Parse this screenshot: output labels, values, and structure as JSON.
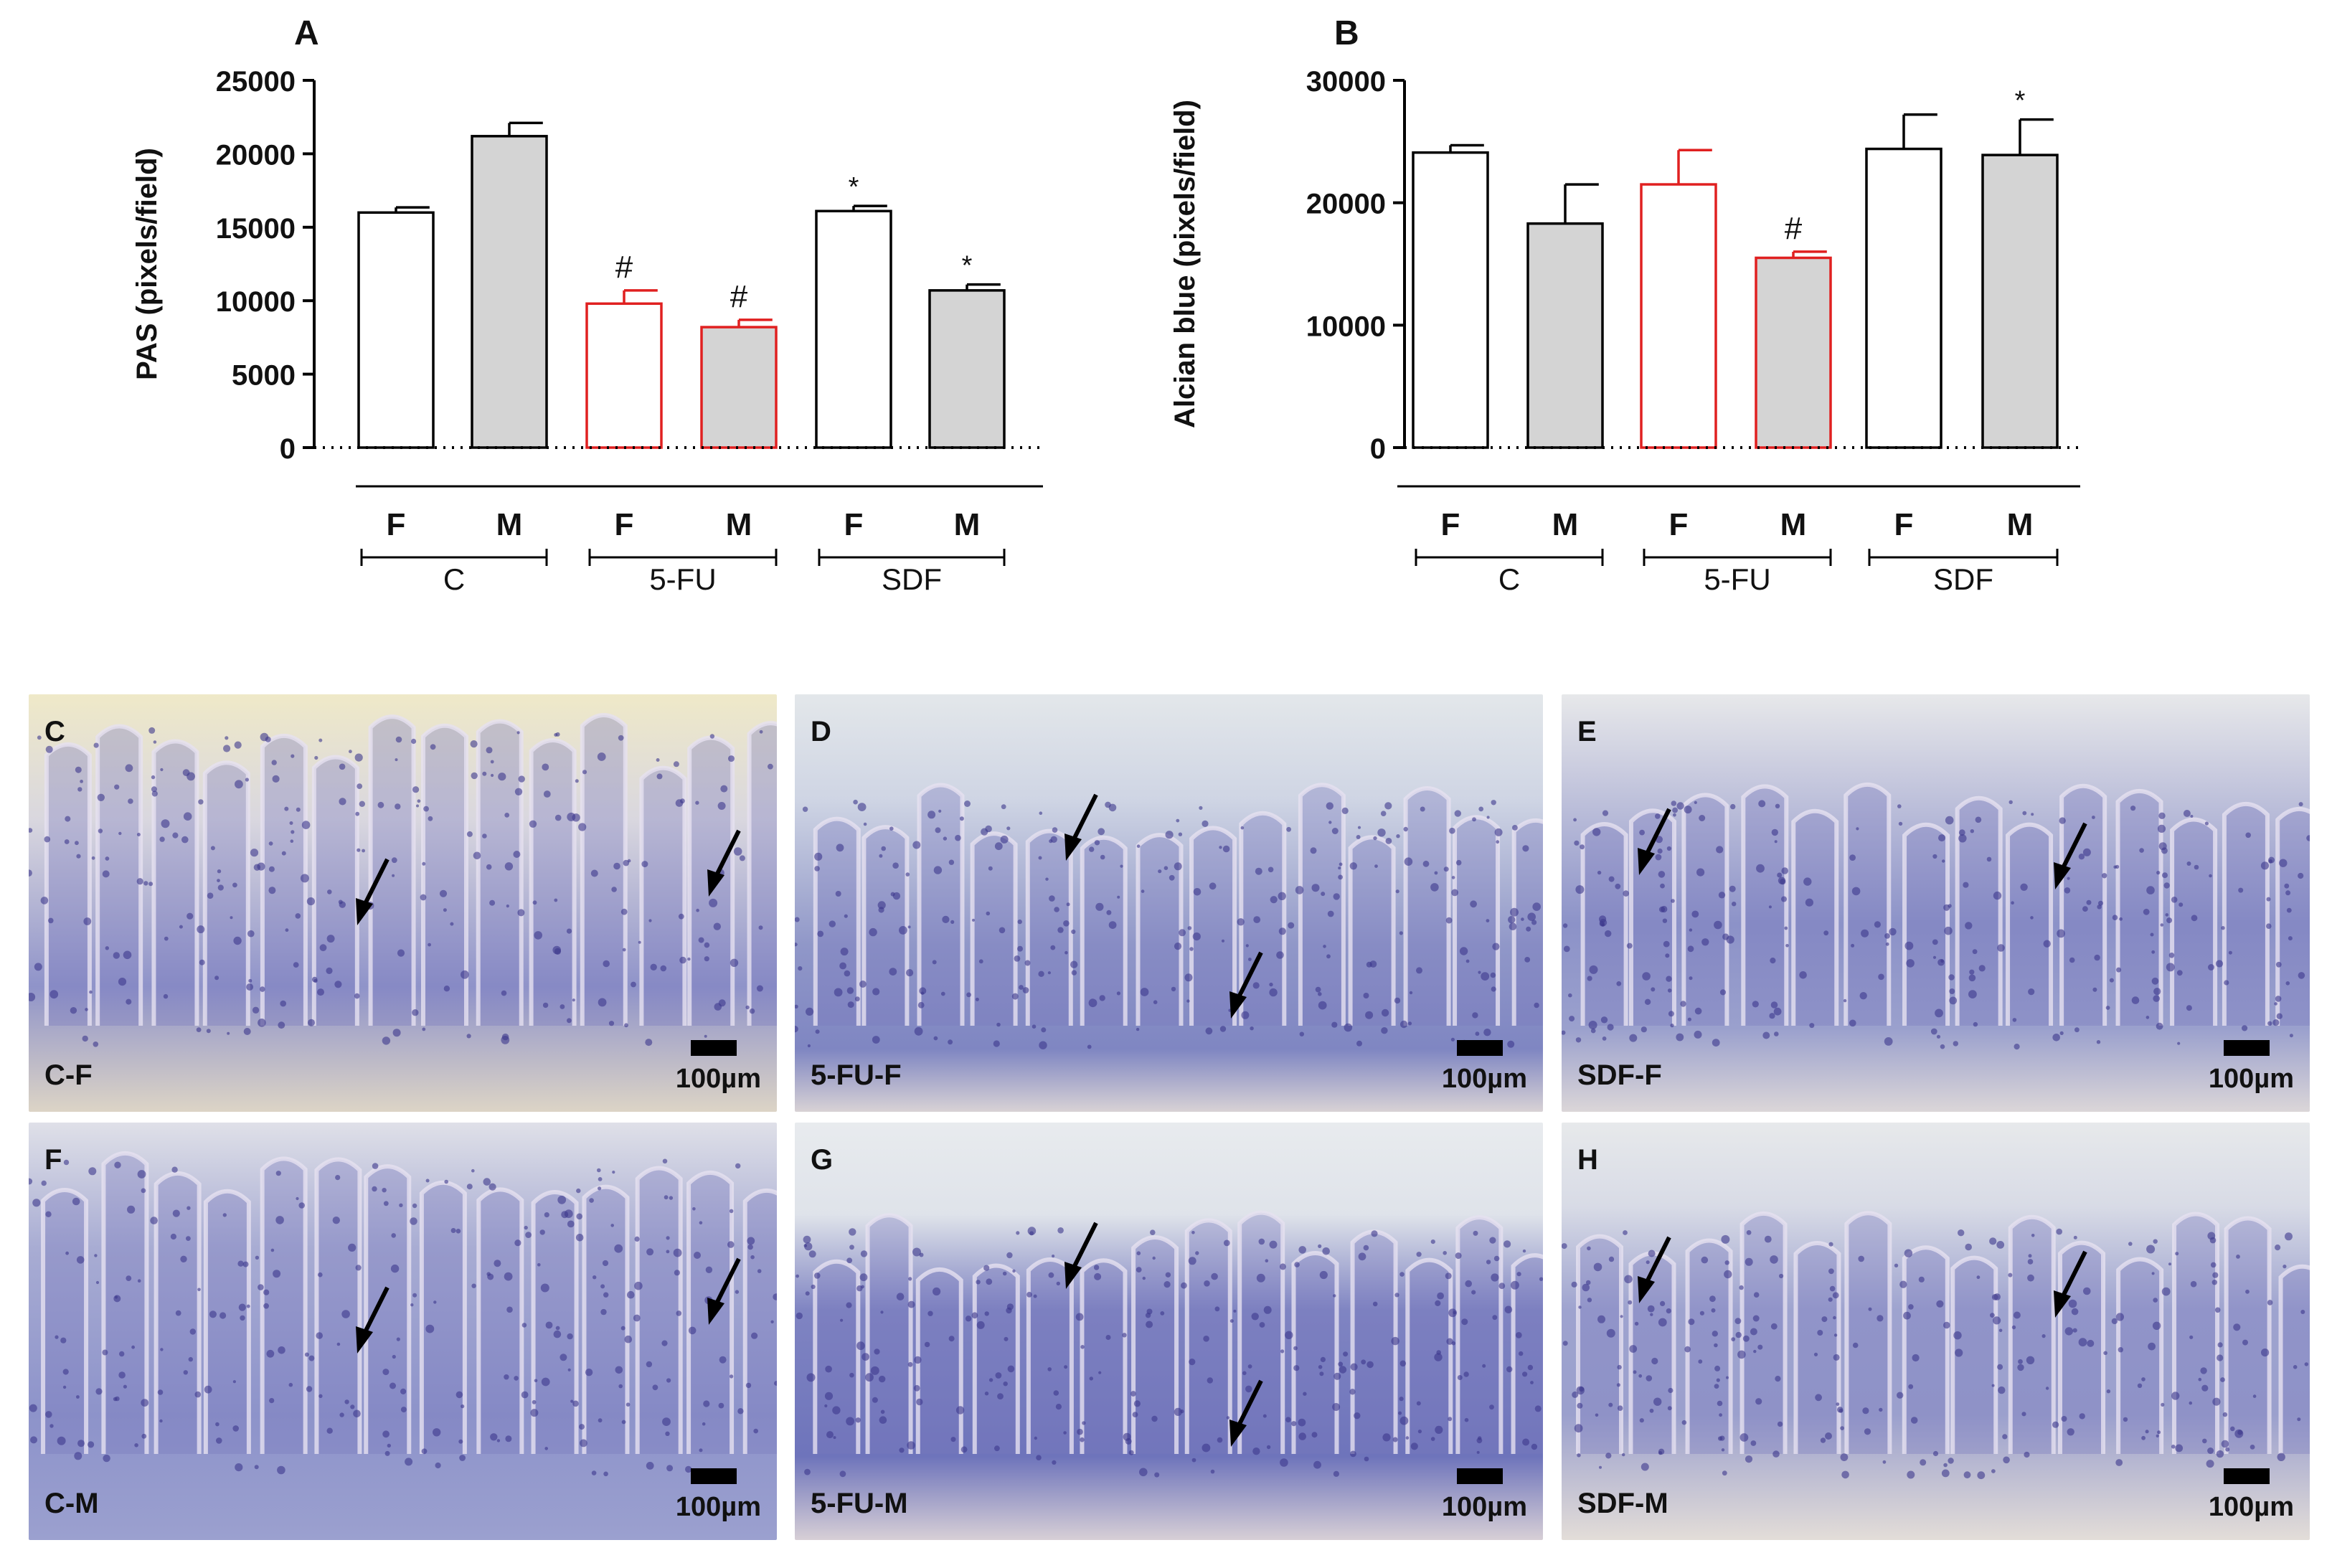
{
  "chart_data": [
    {
      "panel": "A",
      "type": "bar",
      "ylabel": "PAS (pixels/field)",
      "ylim": [
        0,
        25000
      ],
      "yticks": [
        0,
        5000,
        10000,
        15000,
        20000,
        25000
      ],
      "categories": [
        "F",
        "M",
        "F",
        "M",
        "F",
        "M"
      ],
      "groups": [
        {
          "name": "C",
          "span": [
            0,
            1
          ]
        },
        {
          "name": "5-FU",
          "span": [
            2,
            3
          ]
        },
        {
          "name": "SDF",
          "span": [
            4,
            5
          ]
        }
      ],
      "values": [
        16000,
        21200,
        9800,
        8200,
        16100,
        10700
      ],
      "errors": [
        350,
        900,
        900,
        500,
        350,
        400
      ],
      "annotations": [
        "",
        "",
        "#",
        "#",
        "*",
        "*"
      ],
      "fills": [
        "#ffffff",
        "#d4d4d4",
        "#ffffff",
        "#d4d4d4",
        "#ffffff",
        "#d4d4d4"
      ],
      "strokes": [
        "#000000",
        "#000000",
        "#e02020",
        "#e02020",
        "#000000",
        "#000000"
      ]
    },
    {
      "panel": "B",
      "type": "bar",
      "ylabel": "Alcian blue (pixels/field)",
      "ylim": [
        0,
        30000
      ],
      "yticks": [
        0,
        10000,
        20000,
        30000
      ],
      "categories": [
        "F",
        "M",
        "F",
        "M",
        "F",
        "M"
      ],
      "groups": [
        {
          "name": "C",
          "span": [
            0,
            1
          ]
        },
        {
          "name": "5-FU",
          "span": [
            2,
            3
          ]
        },
        {
          "name": "SDF",
          "span": [
            4,
            5
          ]
        }
      ],
      "values": [
        24100,
        18300,
        21500,
        15500,
        24400,
        23900
      ],
      "errors": [
        600,
        3200,
        2800,
        500,
        2800,
        2900
      ],
      "annotations": [
        "",
        "",
        "",
        "#",
        "",
        "*"
      ],
      "fills": [
        "#ffffff",
        "#d4d4d4",
        "#ffffff",
        "#d4d4d4",
        "#ffffff",
        "#d4d4d4"
      ],
      "strokes": [
        "#000000",
        "#000000",
        "#e02020",
        "#e02020",
        "#000000",
        "#000000"
      ]
    }
  ],
  "micrographs": [
    {
      "letter": "C",
      "label": "C-F",
      "scale": "100µm"
    },
    {
      "letter": "D",
      "label": "5-FU-F",
      "scale": "100µm"
    },
    {
      "letter": "E",
      "label": "SDF-F",
      "scale": "100µm"
    },
    {
      "letter": "F",
      "label": "C-M",
      "scale": "100µm"
    },
    {
      "letter": "G",
      "label": "5-FU-M",
      "scale": "100µm"
    },
    {
      "letter": "H",
      "label": "SDF-M",
      "scale": "100µm"
    }
  ]
}
